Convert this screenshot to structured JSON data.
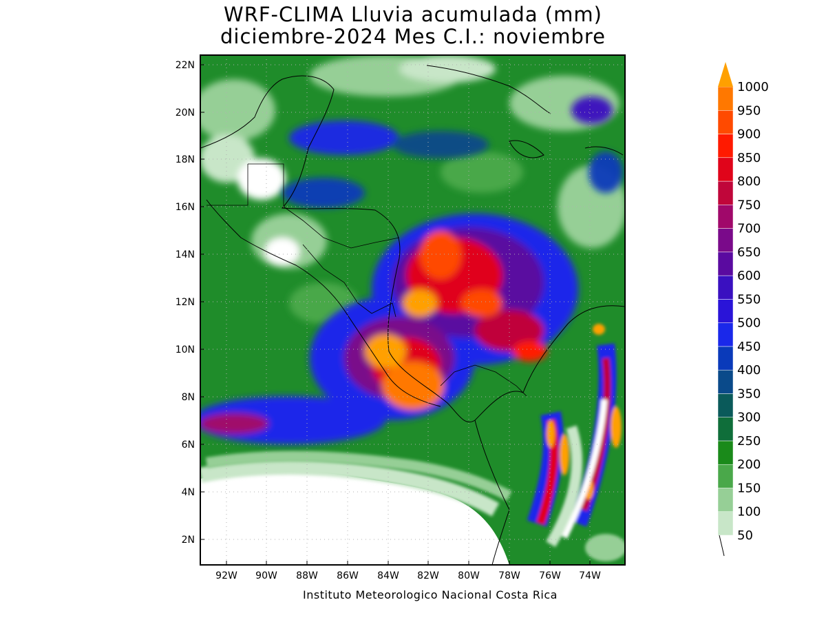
{
  "title": {
    "line1": "WRF-CLIMA Lluvia acumulada (mm)",
    "line2": "diciembre-2024 Mes C.I.: noviembre"
  },
  "credit": "Instituto Meteorologico Nacional Costa Rica",
  "map": {
    "lon_range": [
      -93.3,
      -72.4
    ],
    "lat_range": [
      1.0,
      22.4
    ],
    "lon_ticks": [
      {
        "value": -92,
        "label": "92W"
      },
      {
        "value": -90,
        "label": "90W"
      },
      {
        "value": -88,
        "label": "88W"
      },
      {
        "value": -86,
        "label": "86W"
      },
      {
        "value": -84,
        "label": "84W"
      },
      {
        "value": -82,
        "label": "82W"
      },
      {
        "value": -80,
        "label": "80W"
      },
      {
        "value": -78,
        "label": "78W"
      },
      {
        "value": -76,
        "label": "76W"
      },
      {
        "value": -74,
        "label": "74W"
      }
    ],
    "lat_ticks": [
      {
        "value": 22,
        "label": "22N"
      },
      {
        "value": 20,
        "label": "20N"
      },
      {
        "value": 18,
        "label": "18N"
      },
      {
        "value": 16,
        "label": "16N"
      },
      {
        "value": 14,
        "label": "14N"
      },
      {
        "value": 12,
        "label": "12N"
      },
      {
        "value": 10,
        "label": "10N"
      },
      {
        "value": 8,
        "label": "8N"
      },
      {
        "value": 6,
        "label": "6N"
      },
      {
        "value": 4,
        "label": "4N"
      },
      {
        "value": 2,
        "label": "2N"
      }
    ],
    "grid": "dotted"
  },
  "colorbar": {
    "units": "mm",
    "levels": [
      50,
      100,
      150,
      200,
      250,
      300,
      350,
      400,
      450,
      500,
      550,
      600,
      650,
      700,
      750,
      800,
      850,
      900,
      950,
      1000
    ],
    "colors": [
      "#c8e6c8",
      "#96cf96",
      "#4aa84a",
      "#1a8a1a",
      "#0f6e3a",
      "#0a5a5a",
      "#0a4a8a",
      "#0a3aba",
      "#1a28ea",
      "#2a14d8",
      "#3a10c0",
      "#5a0aa0",
      "#7a0a8a",
      "#a0086a",
      "#c0063a",
      "#e0041a",
      "#ff1a00",
      "#ff4a00",
      "#ff7800",
      "#ffa000"
    ],
    "extend": "max"
  }
}
